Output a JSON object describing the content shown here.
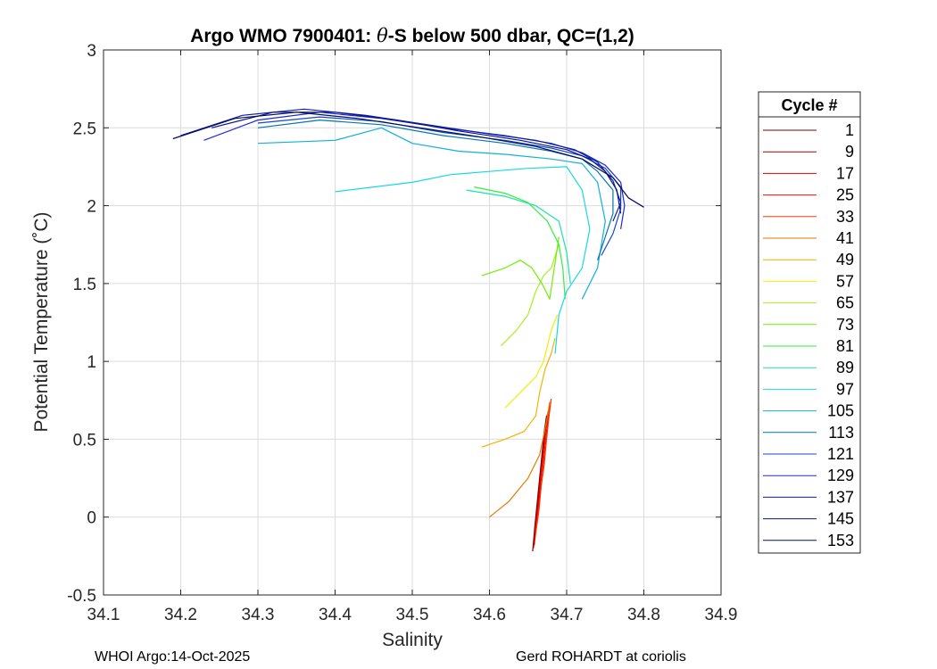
{
  "chart_data": {
    "type": "line",
    "title_prefix": "Argo WMO 7900401: ",
    "title_theta": "θ",
    "title_suffix": "-S below 500 dbar,  QC=(1,2)",
    "xlabel": "Salinity",
    "ylabel": "Potential Temperature (˚C)",
    "xlim": [
      34.1,
      34.9
    ],
    "ylim": [
      -0.5,
      3
    ],
    "xticks": [
      "34.1",
      "34.2",
      "34.3",
      "34.4",
      "34.5",
      "34.6",
      "34.7",
      "34.8",
      "34.9"
    ],
    "yticks": [
      "-0.5",
      "0",
      "0.5",
      "1",
      "1.5",
      "2",
      "2.5",
      "3"
    ],
    "grid": true,
    "legend_title": "Cycle #",
    "legend_location": "outside-right",
    "legend": [
      {
        "label": "1",
        "color": "#800000"
      },
      {
        "label": "9",
        "color": "#a50000"
      },
      {
        "label": "17",
        "color": "#d50000"
      },
      {
        "label": "25",
        "color": "#ff0a00"
      },
      {
        "label": "33",
        "color": "#ff3800"
      },
      {
        "label": "41",
        "color": "#e07b00"
      },
      {
        "label": "49",
        "color": "#f0b400"
      },
      {
        "label": "57",
        "color": "#f0f000"
      },
      {
        "label": "65",
        "color": "#a8f020"
      },
      {
        "label": "73",
        "color": "#6ef000"
      },
      {
        "label": "81",
        "color": "#30ee40"
      },
      {
        "label": "89",
        "color": "#19e3a8"
      },
      {
        "label": "97",
        "color": "#19d9e0"
      },
      {
        "label": "105",
        "color": "#10b0d8"
      },
      {
        "label": "113",
        "color": "#0077aa"
      },
      {
        "label": "121",
        "color": "#1448c8"
      },
      {
        "label": "129",
        "color": "#1b2ad6"
      },
      {
        "label": "137",
        "color": "#0f1fa8"
      },
      {
        "label": "145",
        "color": "#0a1580"
      },
      {
        "label": "153",
        "color": "#050b5e"
      }
    ],
    "series": [
      {
        "name": "1",
        "color": "#800000",
        "x": [
          34.656,
          34.659,
          34.662,
          34.665,
          34.668,
          34.671,
          34.674
        ],
        "y": [
          -0.22,
          -0.05,
          0.1,
          0.25,
          0.4,
          0.55,
          0.65
        ]
      },
      {
        "name": "9",
        "color": "#a50000",
        "x": [
          34.657,
          34.66,
          34.663,
          34.666,
          34.669,
          34.672,
          34.675
        ],
        "y": [
          -0.2,
          -0.04,
          0.12,
          0.26,
          0.42,
          0.56,
          0.66
        ]
      },
      {
        "name": "17",
        "color": "#d50000",
        "x": [
          34.658,
          34.661,
          34.664,
          34.667,
          34.67,
          34.673,
          34.676
        ],
        "y": [
          -0.18,
          -0.02,
          0.12,
          0.28,
          0.43,
          0.57,
          0.68
        ]
      },
      {
        "name": "25",
        "color": "#ff0a00",
        "x": [
          34.659,
          34.662,
          34.666,
          34.669,
          34.672,
          34.675,
          34.678
        ],
        "y": [
          -0.14,
          0.0,
          0.16,
          0.3,
          0.46,
          0.6,
          0.72
        ]
      },
      {
        "name": "33",
        "color": "#ff3800",
        "x": [
          34.66,
          34.664,
          34.667,
          34.671,
          34.674,
          34.677,
          34.68
        ],
        "y": [
          -0.1,
          0.04,
          0.2,
          0.34,
          0.5,
          0.64,
          0.76
        ]
      },
      {
        "name": "41",
        "color": "#e07b00",
        "x": [
          34.6,
          34.625,
          34.65,
          34.665,
          34.67,
          34.675,
          34.678
        ],
        "y": [
          0.0,
          0.1,
          0.25,
          0.4,
          0.52,
          0.64,
          0.74
        ]
      },
      {
        "name": "49",
        "color": "#f0b400",
        "x": [
          34.59,
          34.62,
          34.645,
          34.66,
          34.665,
          34.672,
          34.68,
          34.685
        ],
        "y": [
          0.45,
          0.5,
          0.55,
          0.65,
          0.8,
          0.95,
          1.05,
          1.15
        ]
      },
      {
        "name": "57",
        "color": "#f0f000",
        "x": [
          34.62,
          34.64,
          34.66,
          34.67,
          34.675,
          34.68,
          34.688
        ],
        "y": [
          0.7,
          0.8,
          0.9,
          1.0,
          1.1,
          1.2,
          1.3
        ]
      },
      {
        "name": "65",
        "color": "#a8f020",
        "x": [
          34.615,
          34.635,
          34.65,
          34.66,
          34.67,
          34.68,
          34.69
        ],
        "y": [
          1.1,
          1.2,
          1.3,
          1.45,
          1.55,
          1.6,
          1.75
        ]
      },
      {
        "name": "73",
        "color": "#6ef000",
        "x": [
          34.59,
          34.62,
          34.64,
          34.655,
          34.668,
          34.678,
          34.69
        ],
        "y": [
          1.55,
          1.6,
          1.65,
          1.6,
          1.5,
          1.4,
          1.8
        ]
      },
      {
        "name": "81",
        "color": "#30ee40",
        "x": [
          34.58,
          34.62,
          34.65,
          34.675,
          34.69,
          34.695,
          34.698
        ],
        "y": [
          2.12,
          2.08,
          2.02,
          1.9,
          1.75,
          1.6,
          1.4
        ]
      },
      {
        "name": "89",
        "color": "#19e3a8",
        "x": [
          34.57,
          34.62,
          34.66,
          34.69,
          34.7,
          34.705
        ],
        "y": [
          2.1,
          2.06,
          2.0,
          1.9,
          1.7,
          1.5
        ]
      },
      {
        "name": "97",
        "color": "#19d9e0",
        "x": [
          34.4,
          34.45,
          34.5,
          34.55,
          34.6,
          34.65,
          34.7,
          34.72,
          34.73,
          34.72,
          34.7,
          34.69,
          34.685
        ],
        "y": [
          2.09,
          2.12,
          2.15,
          2.2,
          2.22,
          2.24,
          2.25,
          2.1,
          1.85,
          1.6,
          1.45,
          1.3,
          1.05
        ]
      },
      {
        "name": "105",
        "color": "#10b0d8",
        "x": [
          34.3,
          34.4,
          34.46,
          34.5,
          34.56,
          34.62,
          34.68,
          34.72,
          34.74,
          34.75,
          34.74,
          34.72
        ],
        "y": [
          2.4,
          2.42,
          2.5,
          2.4,
          2.35,
          2.33,
          2.3,
          2.27,
          2.15,
          1.9,
          1.6,
          1.4
        ]
      },
      {
        "name": "113",
        "color": "#0077aa",
        "x": [
          34.3,
          34.38,
          34.46,
          34.54,
          34.62,
          34.68,
          34.72,
          34.74,
          34.76,
          34.76,
          34.75,
          34.74
        ],
        "y": [
          2.5,
          2.55,
          2.52,
          2.45,
          2.4,
          2.35,
          2.3,
          2.22,
          2.1,
          1.95,
          1.8,
          1.65
        ]
      },
      {
        "name": "121",
        "color": "#1448c8",
        "x": [
          34.3,
          34.38,
          34.46,
          34.54,
          34.62,
          34.68,
          34.72,
          34.75,
          34.77,
          34.77,
          34.76,
          34.745
        ],
        "y": [
          2.53,
          2.57,
          2.54,
          2.47,
          2.42,
          2.37,
          2.32,
          2.24,
          2.12,
          1.98,
          1.82,
          1.68
        ]
      },
      {
        "name": "129",
        "color": "#1b2ad6",
        "x": [
          34.23,
          34.3,
          34.38,
          34.46,
          34.54,
          34.62,
          34.68,
          34.72,
          34.75,
          34.77,
          34.775,
          34.77
        ],
        "y": [
          2.42,
          2.55,
          2.6,
          2.56,
          2.5,
          2.45,
          2.4,
          2.34,
          2.26,
          2.15,
          2.0,
          1.85
        ]
      },
      {
        "name": "137",
        "color": "#0f1fa8",
        "x": [
          34.2,
          34.28,
          34.36,
          34.44,
          34.52,
          34.6,
          34.66,
          34.71,
          34.74,
          34.76,
          34.77,
          34.76
        ],
        "y": [
          2.45,
          2.58,
          2.62,
          2.58,
          2.52,
          2.46,
          2.42,
          2.36,
          2.28,
          2.16,
          2.02,
          1.9
        ]
      },
      {
        "name": "145",
        "color": "#0a1580",
        "x": [
          34.24,
          34.32,
          34.4,
          34.48,
          34.56,
          34.64,
          34.7,
          34.73,
          34.75,
          34.765,
          34.77
        ],
        "y": [
          2.5,
          2.6,
          2.6,
          2.55,
          2.48,
          2.42,
          2.36,
          2.3,
          2.22,
          2.1,
          1.95
        ]
      },
      {
        "name": "153",
        "color": "#050b5e",
        "x": [
          34.19,
          34.27,
          34.35,
          34.43,
          34.51,
          34.59,
          34.66,
          34.72,
          34.76,
          34.78,
          34.8
        ],
        "y": [
          2.43,
          2.56,
          2.6,
          2.56,
          2.5,
          2.44,
          2.38,
          2.3,
          2.18,
          2.05,
          1.99
        ]
      }
    ]
  },
  "footer": {
    "left": "WHOI Argo:14-Oct-2025",
    "right": "Gerd ROHARDT at coriolis"
  }
}
